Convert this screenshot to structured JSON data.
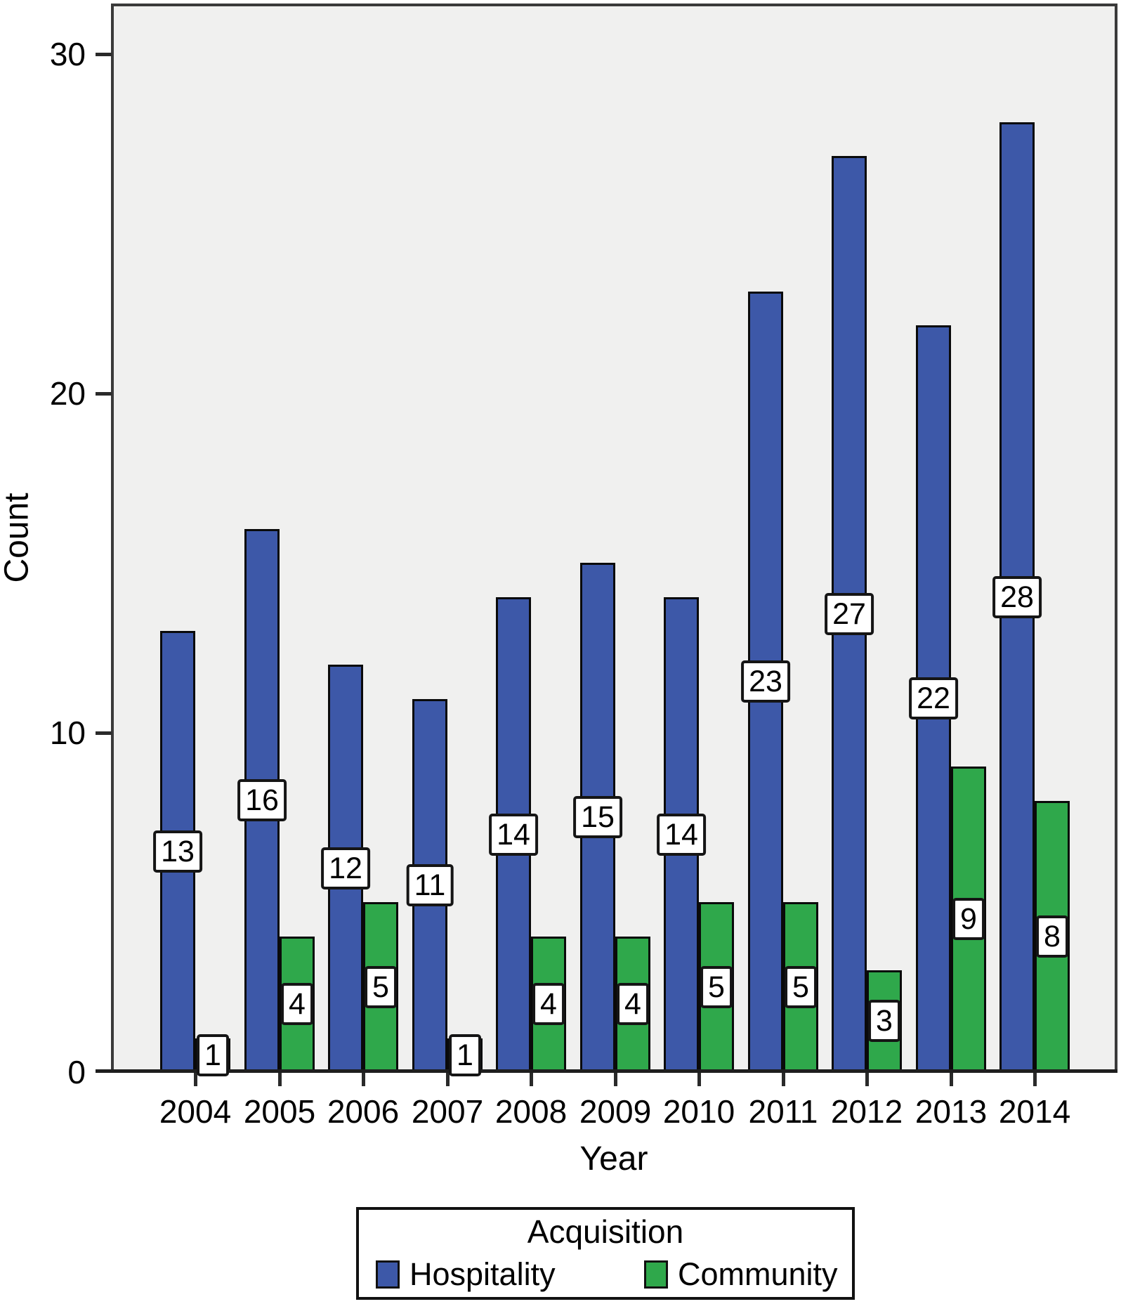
{
  "figure": {
    "ylabel": "Count",
    "xlabel": "Year"
  },
  "legend": {
    "title": "Acquisition",
    "items": [
      {
        "label": "Hospitality",
        "color": "#3D58A8"
      },
      {
        "label": "Community",
        "color": "#2FA84B"
      }
    ]
  },
  "chart_data": {
    "type": "bar",
    "title": "",
    "categories": [
      "2004",
      "2005",
      "2006",
      "2007",
      "2008",
      "2009",
      "2010",
      "2011",
      "2012",
      "2013",
      "2014"
    ],
    "series": [
      {
        "name": "Hospitality",
        "color": "#3D58A8",
        "values": [
          13,
          16,
          12,
          11,
          14,
          15,
          14,
          23,
          27,
          22,
          28
        ]
      },
      {
        "name": "Community",
        "color": "#2FA84B",
        "values": [
          1,
          4,
          5,
          1,
          4,
          4,
          5,
          5,
          3,
          9,
          8
        ]
      }
    ],
    "xlabel": "Year",
    "ylabel": "Count",
    "ylim": [
      0,
      30
    ],
    "yticks": [
      0,
      10,
      20,
      30
    ],
    "bar_value_labels": true,
    "legend_title": "Acquisition",
    "legend_position": "bottom",
    "grid": false,
    "plot_bg": "#F0F0EF"
  }
}
